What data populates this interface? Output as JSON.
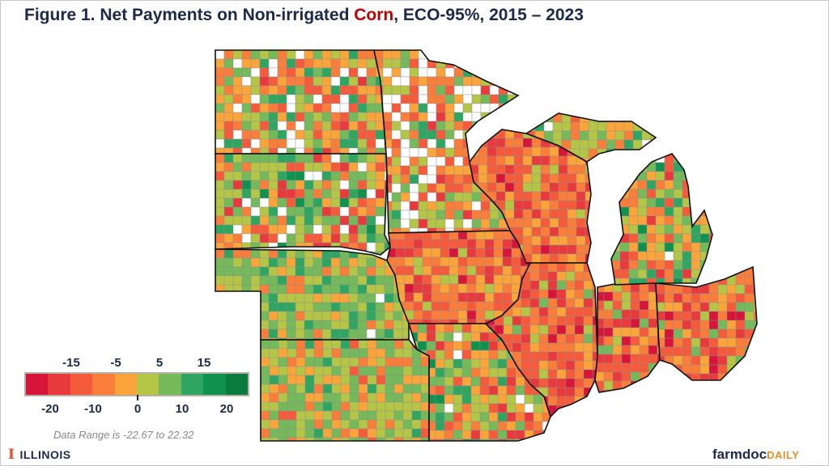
{
  "title": {
    "prefix": "Figure 1. Net Payments on Non-irrigated ",
    "highlight": "Corn",
    "suffix": ", ECO-95%, 2015 – 2023"
  },
  "legend": {
    "colors": [
      "#d7153a",
      "#e8393c",
      "#f55b3a",
      "#fb7d3a",
      "#fba43a",
      "#b5c546",
      "#74b95a",
      "#2fa562",
      "#0e924e",
      "#0b7a3d"
    ],
    "top_ticks": [
      "-15",
      "-5",
      "5",
      "15"
    ],
    "bottom_ticks": [
      "-20",
      "-10",
      "0",
      "10",
      "20"
    ],
    "range_text": "Data Range is -22.67 to 22.32",
    "min": -22.67,
    "max": 22.32
  },
  "logos": {
    "left": "ILLINOIS",
    "right_main": "farmdoc",
    "right_accent": "DAILY"
  }
}
